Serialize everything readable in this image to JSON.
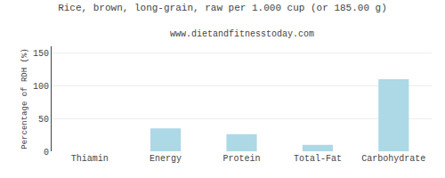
{
  "chart_data": {
    "type": "bar",
    "title": "Rice, brown, long-grain, raw per 1.000 cup (or 185.00 g)",
    "subtitle": "www.dietandfitnesstoday.com",
    "categories": [
      "Thiamin",
      "Energy",
      "Protein",
      "Total-Fat",
      "Carbohydrate"
    ],
    "values": [
      0,
      35,
      26,
      10,
      110
    ],
    "color": "#add8e6",
    "ylabel": "Percentage of RDH (%)",
    "ylim": [
      0,
      160
    ],
    "yticks": [
      0,
      50,
      100,
      150
    ],
    "grid": true
  }
}
